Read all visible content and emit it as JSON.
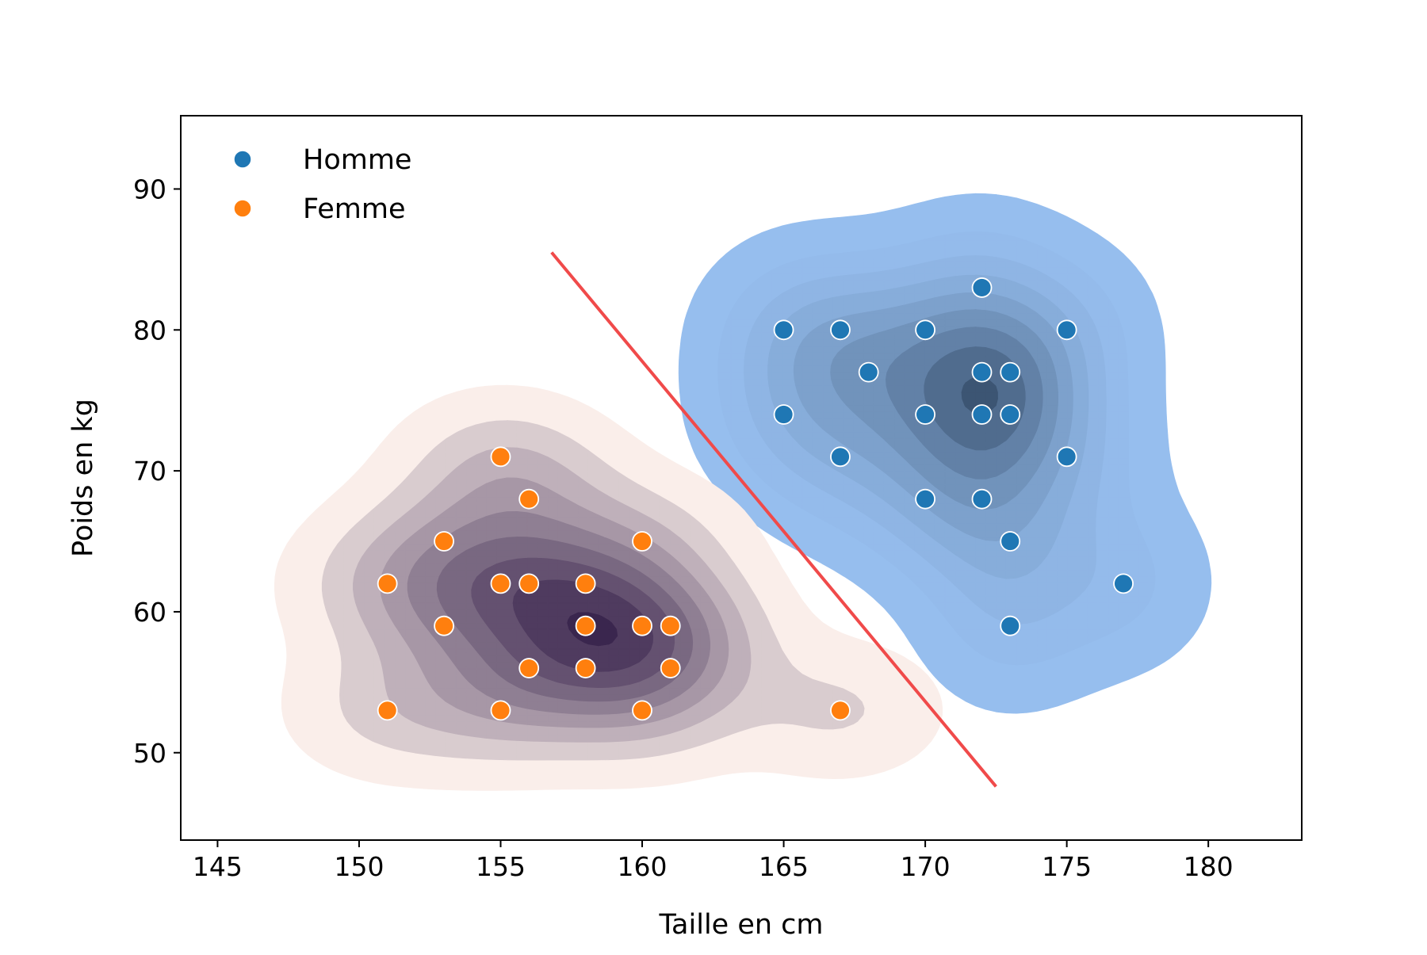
{
  "chart_data": {
    "type": "scatter",
    "title": "",
    "xlabel": "Taille en cm",
    "ylabel": "Poids en kg",
    "xlim": [
      143.7,
      183.3
    ],
    "ylim": [
      43.8,
      95.2
    ],
    "x_ticks": [
      145,
      150,
      155,
      160,
      165,
      170,
      175,
      180
    ],
    "y_ticks": [
      50,
      60,
      70,
      80,
      90
    ],
    "grid": false,
    "legend_position": "top-left",
    "series": [
      {
        "name": "Homme",
        "color": "#1f77b4",
        "kde_color": "#3a8fe8",
        "points": [
          [
            165,
            80
          ],
          [
            167,
            80
          ],
          [
            170,
            80
          ],
          [
            172,
            83
          ],
          [
            175,
            80
          ],
          [
            168,
            77
          ],
          [
            172,
            77
          ],
          [
            173,
            77
          ],
          [
            165,
            74
          ],
          [
            170,
            74
          ],
          [
            172,
            74
          ],
          [
            173,
            74
          ],
          [
            167,
            71
          ],
          [
            175,
            71
          ],
          [
            170,
            68
          ],
          [
            172,
            68
          ],
          [
            173,
            65
          ],
          [
            177,
            62
          ],
          [
            173,
            59
          ]
        ]
      },
      {
        "name": "Femme",
        "color": "#ff7f0e",
        "kde_color": "#6b2f5c",
        "points": [
          [
            155,
            71
          ],
          [
            156,
            68
          ],
          [
            153,
            65
          ],
          [
            160,
            65
          ],
          [
            151,
            62
          ],
          [
            155,
            62
          ],
          [
            156,
            62
          ],
          [
            158,
            62
          ],
          [
            153,
            59
          ],
          [
            158,
            59
          ],
          [
            160,
            59
          ],
          [
            161,
            59
          ],
          [
            156,
            56
          ],
          [
            158,
            56
          ],
          [
            161,
            56
          ],
          [
            151,
            53
          ],
          [
            155,
            53
          ],
          [
            160,
            53
          ],
          [
            167,
            53
          ]
        ]
      }
    ],
    "decision_line": {
      "color": "#f04a4a",
      "points": [
        [
          156.8,
          85.5
        ],
        [
          172.5,
          47.6
        ]
      ]
    }
  }
}
